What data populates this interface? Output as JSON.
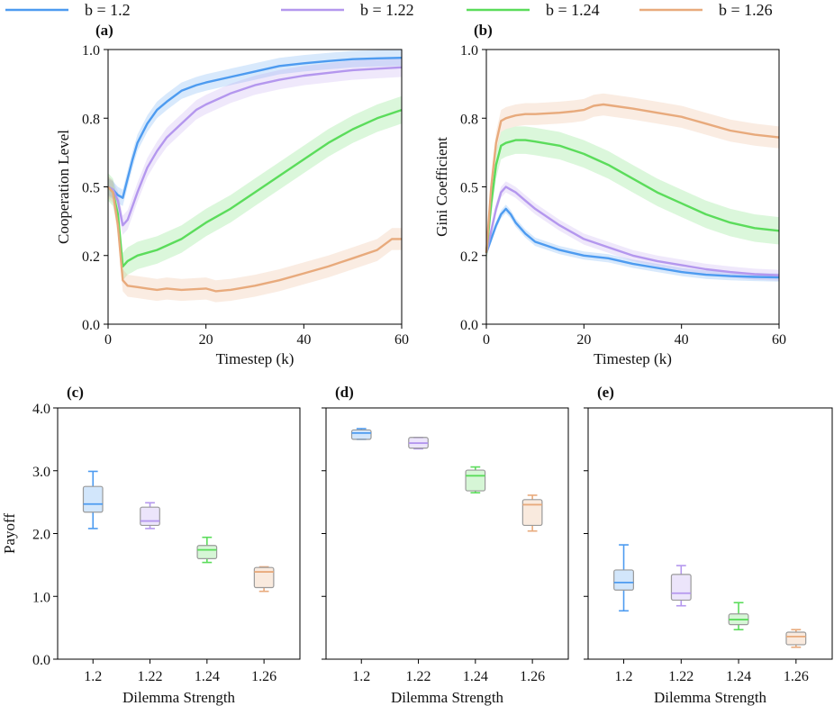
{
  "legend": {
    "entries": [
      {
        "label": "b = 1.2",
        "color": "#4d9bf0"
      },
      {
        "label": "b = 1.22",
        "color": "#b497ee"
      },
      {
        "label": "b = 1.24",
        "color": "#5bdc5b"
      },
      {
        "label": "b = 1.26",
        "color": "#e8aa7c"
      }
    ]
  },
  "chart_data": [
    {
      "panel": "(a)",
      "type": "line",
      "xlabel": "Timestep (k)",
      "ylabel": "Cooperation Level",
      "xlim": [
        0,
        60
      ],
      "ylim": [
        0,
        1
      ],
      "xticks": [
        0,
        20,
        40,
        60
      ],
      "xtick_labels": [
        "0",
        "20",
        "40",
        "60"
      ],
      "yticks": [
        0.0,
        0.25,
        0.5,
        0.75,
        1.0
      ],
      "ytick_labels": [
        "0.0",
        "0.2",
        "0.5",
        "0.8",
        "1.0"
      ],
      "series": [
        {
          "name": "b = 1.2",
          "band": 0.03,
          "x": [
            0,
            1,
            2,
            3,
            4,
            5,
            6,
            8,
            10,
            12,
            15,
            18,
            20,
            25,
            30,
            35,
            40,
            45,
            50,
            55,
            60
          ],
          "y": [
            0.5,
            0.49,
            0.47,
            0.46,
            0.53,
            0.6,
            0.66,
            0.73,
            0.78,
            0.81,
            0.85,
            0.87,
            0.88,
            0.9,
            0.92,
            0.94,
            0.95,
            0.958,
            0.965,
            0.968,
            0.97
          ]
        },
        {
          "name": "b = 1.22",
          "band": 0.035,
          "x": [
            0,
            1,
            2,
            3,
            4,
            5,
            6,
            8,
            10,
            12,
            15,
            18,
            20,
            25,
            30,
            35,
            40,
            45,
            50,
            55,
            60
          ],
          "y": [
            0.5,
            0.49,
            0.45,
            0.36,
            0.38,
            0.43,
            0.48,
            0.57,
            0.63,
            0.68,
            0.73,
            0.78,
            0.8,
            0.84,
            0.87,
            0.89,
            0.905,
            0.915,
            0.925,
            0.93,
            0.935
          ]
        },
        {
          "name": "b = 1.24",
          "band": 0.05,
          "x": [
            0,
            1,
            2,
            3,
            4,
            5,
            6,
            8,
            10,
            15,
            20,
            25,
            30,
            35,
            40,
            45,
            50,
            55,
            60
          ],
          "y": [
            0.5,
            0.48,
            0.4,
            0.21,
            0.23,
            0.24,
            0.25,
            0.26,
            0.27,
            0.31,
            0.37,
            0.42,
            0.48,
            0.54,
            0.6,
            0.66,
            0.71,
            0.75,
            0.78
          ]
        },
        {
          "name": "b = 1.26",
          "band": 0.04,
          "x": [
            0,
            1,
            2,
            3,
            4,
            6,
            8,
            10,
            12,
            15,
            20,
            22,
            25,
            30,
            35,
            40,
            45,
            50,
            55,
            58,
            60
          ],
          "y": [
            0.5,
            0.48,
            0.36,
            0.16,
            0.14,
            0.135,
            0.13,
            0.125,
            0.13,
            0.125,
            0.13,
            0.12,
            0.125,
            0.14,
            0.16,
            0.185,
            0.21,
            0.24,
            0.27,
            0.31,
            0.31
          ]
        }
      ]
    },
    {
      "panel": "(b)",
      "type": "line",
      "xlabel": "Timestep (k)",
      "ylabel": "Gini Coefficient",
      "xlim": [
        0,
        60
      ],
      "ylim": [
        0,
        1
      ],
      "xticks": [
        0,
        20,
        40,
        60
      ],
      "xtick_labels": [
        "0",
        "20",
        "40",
        "60"
      ],
      "yticks": [
        0.0,
        0.25,
        0.5,
        0.75,
        1.0
      ],
      "ytick_labels": [
        "0.0",
        "0.2",
        "0.5",
        "0.8",
        "1.0"
      ],
      "series": [
        {
          "name": "b = 1.2",
          "band": 0.015,
          "x": [
            0,
            1,
            2,
            3,
            4,
            5,
            6,
            8,
            10,
            15,
            20,
            25,
            30,
            35,
            40,
            45,
            50,
            55,
            60
          ],
          "y": [
            0.26,
            0.31,
            0.36,
            0.4,
            0.42,
            0.4,
            0.37,
            0.33,
            0.3,
            0.27,
            0.25,
            0.24,
            0.22,
            0.205,
            0.19,
            0.18,
            0.175,
            0.172,
            0.17
          ]
        },
        {
          "name": "b = 1.22",
          "band": 0.02,
          "x": [
            0,
            1,
            2,
            3,
            4,
            5,
            6,
            8,
            10,
            15,
            20,
            25,
            30,
            35,
            40,
            45,
            50,
            55,
            60
          ],
          "y": [
            0.26,
            0.34,
            0.42,
            0.48,
            0.5,
            0.49,
            0.48,
            0.45,
            0.42,
            0.36,
            0.31,
            0.28,
            0.25,
            0.23,
            0.215,
            0.2,
            0.19,
            0.182,
            0.178
          ]
        },
        {
          "name": "b = 1.24",
          "band": 0.05,
          "x": [
            0,
            1,
            2,
            3,
            4,
            5,
            6,
            8,
            10,
            15,
            20,
            25,
            30,
            35,
            40,
            45,
            50,
            55,
            60
          ],
          "y": [
            0.26,
            0.44,
            0.58,
            0.65,
            0.66,
            0.665,
            0.67,
            0.67,
            0.665,
            0.65,
            0.62,
            0.58,
            0.53,
            0.48,
            0.44,
            0.4,
            0.37,
            0.35,
            0.34
          ]
        },
        {
          "name": "b = 1.26",
          "band": 0.04,
          "x": [
            0,
            1,
            2,
            3,
            4,
            5,
            6,
            8,
            10,
            15,
            18,
            20,
            22,
            24,
            26,
            30,
            35,
            40,
            45,
            50,
            55,
            60
          ],
          "y": [
            0.26,
            0.5,
            0.66,
            0.74,
            0.75,
            0.755,
            0.76,
            0.765,
            0.765,
            0.77,
            0.775,
            0.78,
            0.795,
            0.8,
            0.795,
            0.785,
            0.77,
            0.755,
            0.73,
            0.705,
            0.69,
            0.68
          ]
        }
      ]
    },
    {
      "panel": "(c)",
      "type": "box",
      "xlabel": "Dilemma Strength",
      "ylabel": "Payoff",
      "categories": [
        "1.2",
        "1.22",
        "1.24",
        "1.26"
      ],
      "ylim": [
        0,
        4
      ],
      "yticks": [
        0,
        1,
        2,
        3,
        4
      ],
      "ytick_labels": [
        "0.0",
        "1.0",
        "2.0",
        "3.0",
        "4.0"
      ],
      "boxes": [
        {
          "whislo": 2.08,
          "q1": 2.34,
          "med": 2.47,
          "q3": 2.75,
          "whishi": 2.99
        },
        {
          "whislo": 2.08,
          "q1": 2.13,
          "med": 2.2,
          "q3": 2.42,
          "whishi": 2.49
        },
        {
          "whislo": 1.54,
          "q1": 1.6,
          "med": 1.74,
          "q3": 1.81,
          "whishi": 1.94
        },
        {
          "whislo": 1.08,
          "q1": 1.14,
          "med": 1.39,
          "q3": 1.46,
          "whishi": 1.47
        }
      ]
    },
    {
      "panel": "(d)",
      "type": "box",
      "xlabel": "Dilemma Strength",
      "ylabel": "",
      "categories": [
        "1.2",
        "1.22",
        "1.24",
        "1.26"
      ],
      "ylim": [
        0,
        4
      ],
      "yticks": [
        0,
        1,
        2,
        3,
        4
      ],
      "ytick_labels": [],
      "boxes": [
        {
          "whislo": 3.5,
          "q1": 3.5,
          "med": 3.6,
          "q3": 3.65,
          "whishi": 3.67
        },
        {
          "whislo": 3.35,
          "q1": 3.36,
          "med": 3.44,
          "q3": 3.53,
          "whishi": 3.53
        },
        {
          "whislo": 2.65,
          "q1": 2.68,
          "med": 2.92,
          "q3": 3.01,
          "whishi": 3.06
        },
        {
          "whislo": 2.04,
          "q1": 2.13,
          "med": 2.46,
          "q3": 2.54,
          "whishi": 2.61
        }
      ]
    },
    {
      "panel": "(e)",
      "type": "box",
      "xlabel": "Dilemma Strength",
      "ylabel": "",
      "categories": [
        "1.2",
        "1.22",
        "1.24",
        "1.26"
      ],
      "ylim": [
        0,
        4
      ],
      "yticks": [
        0,
        1,
        2,
        3,
        4
      ],
      "ytick_labels": [],
      "boxes": [
        {
          "whislo": 0.77,
          "q1": 1.1,
          "med": 1.22,
          "q3": 1.42,
          "whishi": 1.82
        },
        {
          "whislo": 0.85,
          "q1": 0.94,
          "med": 1.05,
          "q3": 1.35,
          "whishi": 1.49
        },
        {
          "whislo": 0.47,
          "q1": 0.55,
          "med": 0.63,
          "q3": 0.72,
          "whishi": 0.9
        },
        {
          "whislo": 0.19,
          "q1": 0.23,
          "med": 0.36,
          "q3": 0.43,
          "whishi": 0.47
        }
      ]
    }
  ]
}
